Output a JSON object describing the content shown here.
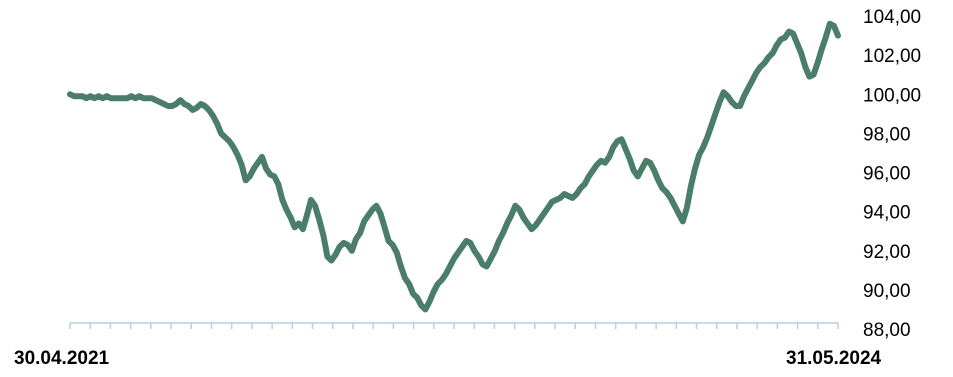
{
  "chart_data": {
    "type": "line",
    "x_start_label": "30.04.2021",
    "x_end_label": "31.05.2024",
    "y_ticks": [
      "104,00",
      "102,00",
      "100,00",
      "98,00",
      "96,00",
      "94,00",
      "92,00",
      "90,00",
      "88,00"
    ],
    "ylim": [
      88,
      104
    ],
    "grid": false,
    "line_color": "#4a7d6a",
    "axis_color": "#b7cfe0",
    "series": [
      {
        "values": [
          100.0,
          99.9,
          99.9,
          99.9,
          99.8,
          99.9,
          99.8,
          99.9,
          99.8,
          99.9,
          99.8,
          99.8,
          99.8,
          99.8,
          99.8,
          99.9,
          99.8,
          99.9,
          99.8,
          99.8,
          99.8,
          99.7,
          99.6,
          99.5,
          99.4,
          99.4,
          99.5,
          99.7,
          99.5,
          99.4,
          99.2,
          99.3,
          99.5,
          99.4,
          99.2,
          98.9,
          98.5,
          98.0,
          97.8,
          97.6,
          97.3,
          96.9,
          96.4,
          95.6,
          95.8,
          96.2,
          96.5,
          96.8,
          96.2,
          95.9,
          95.8,
          95.4,
          94.6,
          94.1,
          93.7,
          93.2,
          93.4,
          93.1,
          93.8,
          94.6,
          94.3,
          93.6,
          92.8,
          91.7,
          91.5,
          91.8,
          92.2,
          92.4,
          92.3,
          92.0,
          92.6,
          92.9,
          93.5,
          93.8,
          94.1,
          94.3,
          93.9,
          93.2,
          92.5,
          92.3,
          91.9,
          91.2,
          90.6,
          90.3,
          89.8,
          89.6,
          89.2,
          89.0,
          89.4,
          89.9,
          90.3,
          90.5,
          90.8,
          91.2,
          91.6,
          91.9,
          92.2,
          92.5,
          92.4,
          92.0,
          91.7,
          91.3,
          91.2,
          91.6,
          92.0,
          92.5,
          92.9,
          93.4,
          93.8,
          94.3,
          94.1,
          93.7,
          93.4,
          93.1,
          93.3,
          93.6,
          93.9,
          94.2,
          94.5,
          94.6,
          94.7,
          94.9,
          94.8,
          94.7,
          94.9,
          95.2,
          95.4,
          95.8,
          96.1,
          96.4,
          96.6,
          96.5,
          96.8,
          97.3,
          97.6,
          97.7,
          97.2,
          96.7,
          96.1,
          95.8,
          96.2,
          96.6,
          96.5,
          96.1,
          95.6,
          95.2,
          95.0,
          94.7,
          94.3,
          93.9,
          93.5,
          94.2,
          95.3,
          96.2,
          96.9,
          97.3,
          97.8,
          98.4,
          99.0,
          99.6,
          100.1,
          99.9,
          99.6,
          99.4,
          99.4,
          99.9,
          100.3,
          100.7,
          101.1,
          101.4,
          101.6,
          101.9,
          102.1,
          102.5,
          102.8,
          102.9,
          103.2,
          103.1,
          102.6,
          102.1,
          101.4,
          100.9,
          101.0,
          101.6,
          102.3,
          102.9,
          103.6,
          103.5,
          103.0
        ]
      }
    ]
  }
}
